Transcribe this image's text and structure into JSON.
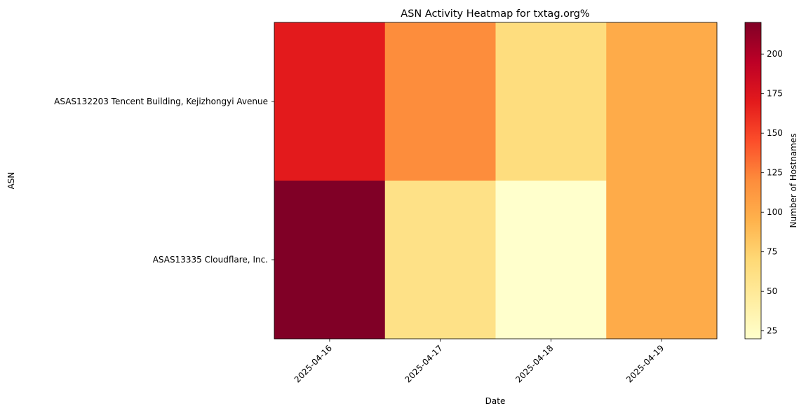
{
  "chart_data": {
    "type": "heatmap",
    "title": "ASN Activity Heatmap for txtag.org%",
    "xlabel": "Date",
    "ylabel": "ASN",
    "x_categories": [
      "2025-04-16",
      "2025-04-17",
      "2025-04-18",
      "2025-04-19"
    ],
    "y_categories": [
      "ASAS132203 Tencent Building, Kejizhongyi Avenue",
      "ASAS13335 Cloudflare, Inc."
    ],
    "values": [
      [
        170,
        120,
        65,
        100
      ],
      [
        220,
        60,
        20,
        100
      ]
    ],
    "colorbar": {
      "label": "Number of Hostnames",
      "min": 20,
      "max": 220,
      "ticks": [
        25,
        50,
        75,
        100,
        125,
        150,
        175,
        200
      ],
      "colormap": "YlOrRd"
    },
    "grid": false,
    "x_tick_rotation": 45
  }
}
